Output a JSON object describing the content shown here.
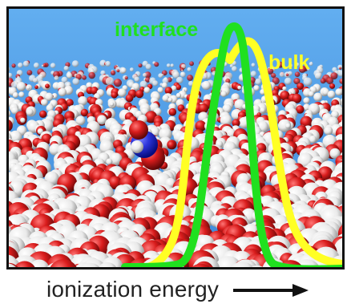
{
  "labels": {
    "interface": "interface",
    "bulk": "bulk",
    "x_axis": "ionization energy"
  },
  "colors": {
    "sky": "#4f9be4",
    "interface_curve": "#20e01f",
    "bulk_curve": "#ffff24",
    "water_oxygen": "#d91c1c",
    "water_hydrogen": "#f2f2f2",
    "solute_nitrogen": "#2d35dc",
    "axis_arrow": "#111111"
  },
  "curves": {
    "interface": {
      "name": "interface",
      "shape": "narrow peak"
    },
    "bulk": {
      "name": "bulk",
      "shape": "broad peak"
    }
  },
  "icons": {
    "x_axis_arrow": "right-arrow-icon",
    "solute_molecule": "molecule-icon"
  }
}
